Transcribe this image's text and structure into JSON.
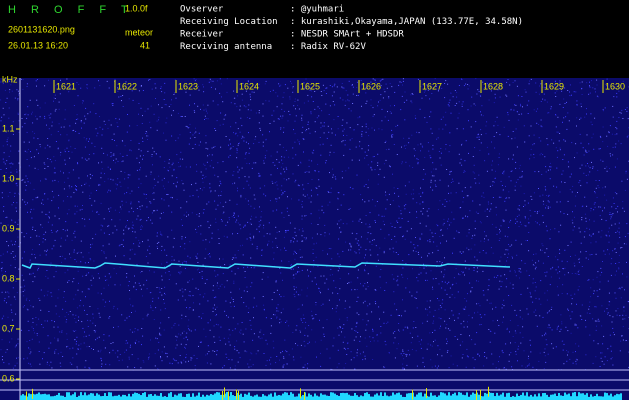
{
  "header": {
    "title": "H R O F F T",
    "version": "1.0.0f",
    "filename": "2601131620.png",
    "mode": "meteor",
    "datetime": "26.01.13 16:20",
    "count": "41",
    "info": [
      {
        "label": "Ovserver",
        "value": ": @yuhmari"
      },
      {
        "label": "Receiving Location",
        "value": ": kurashiki,Okayama,JAPAN (133.77E, 34.58N)"
      },
      {
        "label": "Receiver",
        "value": ": NESDR SMArt + HDSDR"
      },
      {
        "label": "Recviving antenna",
        "value": ": Radix RV-62V"
      }
    ]
  },
  "axis": {
    "unit": "kHz",
    "x_labels": [
      "1621",
      "1622",
      "1623",
      "1624",
      "1625",
      "1626",
      "1627",
      "1628",
      "1629",
      "1630"
    ],
    "y_labels": [
      "1.1",
      "1.0",
      "0.9",
      "0.8",
      "0.7",
      "0.6"
    ]
  }
}
